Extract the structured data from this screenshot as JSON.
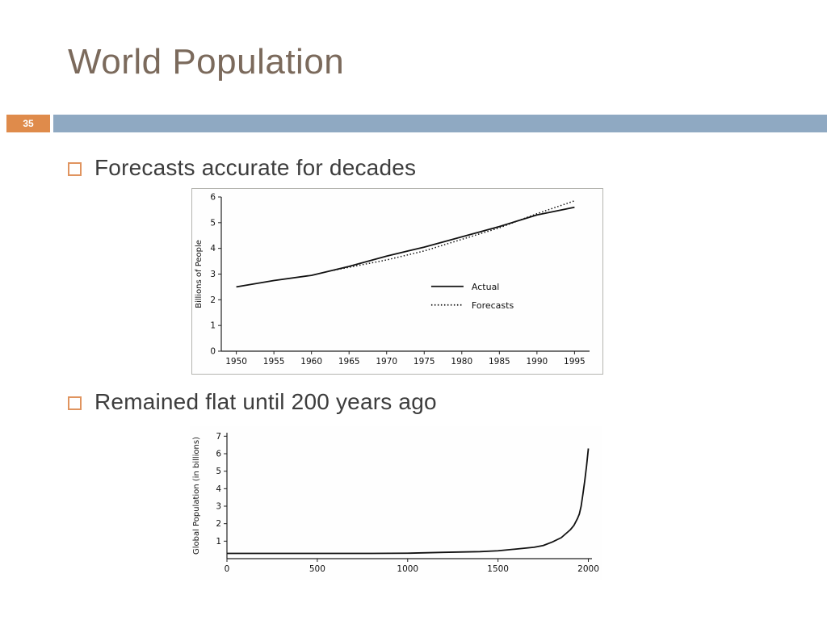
{
  "slide": {
    "title": "World Population",
    "slide_number": "35",
    "bullets": [
      {
        "label": "Forecasts accurate for decades"
      },
      {
        "label": "Remained flat until 200 years ago"
      }
    ]
  },
  "colors": {
    "title_text": "#7b6a5c",
    "accent_orange": "#df8b4b",
    "band_blue": "#8fa9c2",
    "body_text": "#3d3d3d",
    "chart_line": "#111111"
  },
  "chart_data": [
    {
      "type": "line",
      "title": "",
      "xlabel": "",
      "ylabel": "Billions of People",
      "xlim": [
        1948,
        1997
      ],
      "ylim": [
        0,
        6
      ],
      "x_ticks": [
        1950,
        1955,
        1960,
        1965,
        1970,
        1975,
        1980,
        1985,
        1990,
        1995
      ],
      "y_ticks": [
        0,
        1,
        2,
        3,
        4,
        5,
        6
      ],
      "grid": false,
      "legend": {
        "pos": [
          0.57,
          0.58
        ],
        "items": [
          {
            "label": "Actual",
            "style": "solid"
          },
          {
            "label": "Forecasts",
            "style": "dotted"
          }
        ]
      },
      "series": [
        {
          "name": "Actual",
          "style": "solid",
          "x": [
            1950,
            1955,
            1960,
            1965,
            1970,
            1975,
            1980,
            1985,
            1990,
            1995
          ],
          "values": [
            2.5,
            2.75,
            2.95,
            3.3,
            3.7,
            4.05,
            4.45,
            4.85,
            5.3,
            5.6
          ]
        },
        {
          "name": "Forecasts",
          "style": "dotted",
          "x": [
            1963,
            1970,
            1975,
            1980,
            1985,
            1990,
            1995
          ],
          "values": [
            3.15,
            3.55,
            3.9,
            4.35,
            4.8,
            5.35,
            5.85
          ]
        }
      ]
    },
    {
      "type": "line",
      "title": "",
      "xlabel": "",
      "ylabel": "Global Population (in billions)",
      "xlim": [
        0,
        2020
      ],
      "ylim": [
        0,
        7.2
      ],
      "x_ticks": [
        0,
        500,
        1000,
        1500,
        2000
      ],
      "y_ticks": [
        1,
        2,
        3,
        4,
        5,
        6,
        7
      ],
      "grid": false,
      "series": [
        {
          "name": "Global population",
          "style": "solid",
          "x": [
            0,
            200,
            400,
            600,
            800,
            1000,
            1200,
            1400,
            1500,
            1600,
            1700,
            1750,
            1800,
            1850,
            1900,
            1920,
            1940,
            1950,
            1960,
            1970,
            1980,
            1990,
            2000
          ],
          "values": [
            0.3,
            0.3,
            0.3,
            0.3,
            0.3,
            0.31,
            0.36,
            0.4,
            0.45,
            0.55,
            0.65,
            0.75,
            0.95,
            1.2,
            1.65,
            1.9,
            2.3,
            2.55,
            3.0,
            3.7,
            4.45,
            5.3,
            6.3
          ]
        }
      ]
    }
  ]
}
